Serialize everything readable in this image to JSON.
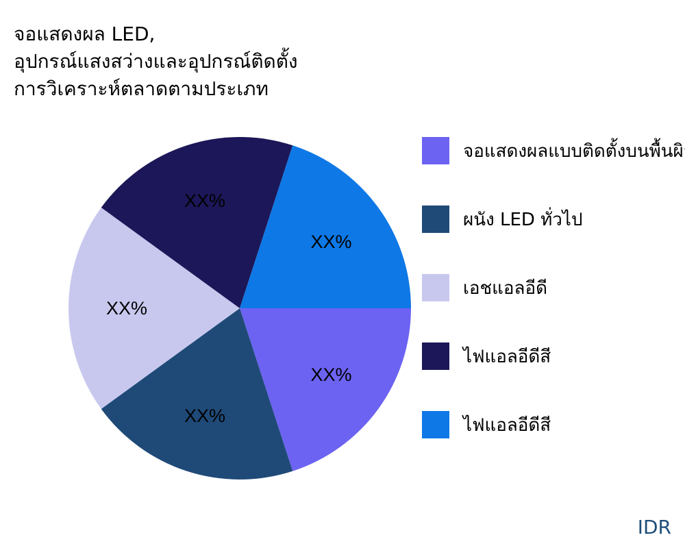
{
  "chart_data": {
    "type": "pie",
    "title_lines": [
      "จอแสดงผล LED,",
      "อุปกรณ์แสงสว่างและอุปกรณ์ติดตั้ง",
      "การวิเคราะห์ตลาดตามประเภท"
    ],
    "slices": [
      {
        "name": "จอแสดงผลแบบติดตั้งบนพื้นผิว",
        "value": 20,
        "label": "XX%",
        "color": "#6c63f2"
      },
      {
        "name": "ผนัง LED ทั่วไป",
        "value": 20,
        "label": "XX%",
        "color": "#1f4a78"
      },
      {
        "name": "เอชแอลอีดี",
        "value": 20,
        "label": "XX%",
        "color": "#c8c8ef"
      },
      {
        "name": "ไฟแอลอีดีสี",
        "value": 20,
        "label": "XX%",
        "color": "#1c1758"
      },
      {
        "name": "ไฟแอลอีดีสี",
        "value": 20,
        "label": "XX%",
        "color": "#0e78e6"
      }
    ],
    "legend_position": "right"
  },
  "brand": {
    "text": "IDR",
    "color": "#1f4e79"
  }
}
